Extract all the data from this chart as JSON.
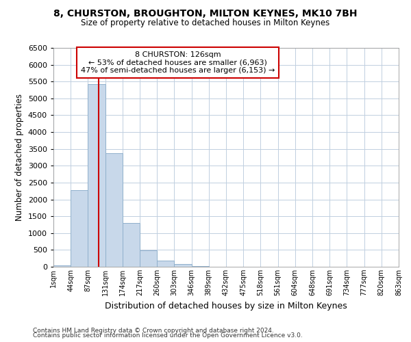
{
  "title": "8, CHURSTON, BROUGHTON, MILTON KEYNES, MK10 7BH",
  "subtitle": "Size of property relative to detached houses in Milton Keynes",
  "xlabel": "Distribution of detached houses by size in Milton Keynes",
  "ylabel": "Number of detached properties",
  "bin_labels": [
    "1sqm",
    "44sqm",
    "87sqm",
    "131sqm",
    "174sqm",
    "217sqm",
    "260sqm",
    "303sqm",
    "346sqm",
    "389sqm",
    "432sqm",
    "475sqm",
    "518sqm",
    "561sqm",
    "604sqm",
    "648sqm",
    "691sqm",
    "734sqm",
    "777sqm",
    "820sqm",
    "863sqm"
  ],
  "bar_values": [
    50,
    2280,
    5420,
    3380,
    1300,
    480,
    185,
    90,
    20,
    0,
    0,
    0,
    0,
    0,
    0,
    0,
    0,
    0,
    0,
    0
  ],
  "bar_color": "#c8d8ea",
  "bar_edgecolor": "#90b0cc",
  "ylim": [
    0,
    6500
  ],
  "yticks": [
    0,
    500,
    1000,
    1500,
    2000,
    2500,
    3000,
    3500,
    4000,
    4500,
    5000,
    5500,
    6000,
    6500
  ],
  "vline_x": 2.62,
  "vline_color": "#cc0000",
  "annotation_title": "8 CHURSTON: 126sqm",
  "annotation_line1": "← 53% of detached houses are smaller (6,963)",
  "annotation_line2": "47% of semi-detached houses are larger (6,153) →",
  "annotation_box_facecolor": "#ffffff",
  "annotation_box_edgecolor": "#cc0000",
  "footer_line1": "Contains HM Land Registry data © Crown copyright and database right 2024.",
  "footer_line2": "Contains public sector information licensed under the Open Government Licence v3.0.",
  "background_color": "#ffffff",
  "grid_color": "#c0cfe0"
}
